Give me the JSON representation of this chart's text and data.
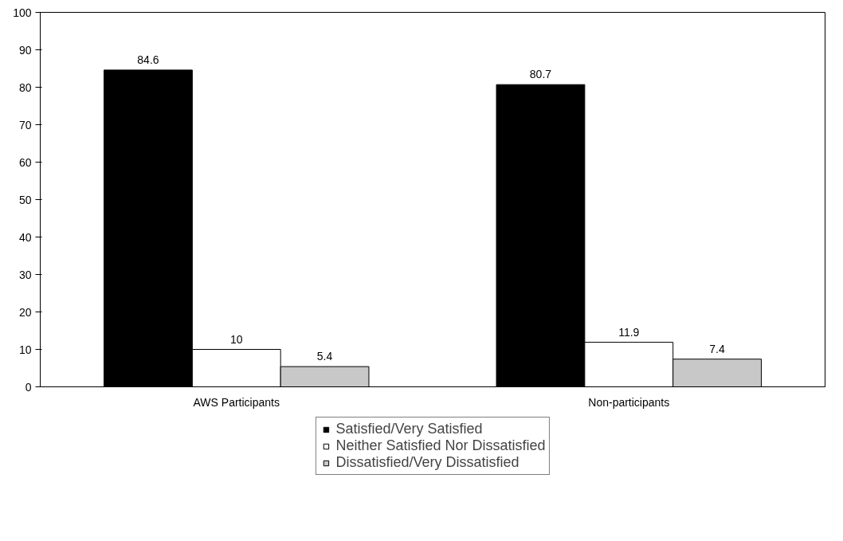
{
  "chart_data": {
    "type": "bar",
    "categories": [
      "AWS Participants",
      "Non-participants"
    ],
    "series": [
      {
        "name": "Satisfied/Very Satisfied",
        "color": "#000000",
        "values": [
          84.6,
          80.7
        ]
      },
      {
        "name": "Neither Satisfied Nor Dissatisfied",
        "color": "#ffffff",
        "values": [
          10,
          11.9
        ]
      },
      {
        "name": "Dissatisfied/Very Dissatisfied",
        "color": "#c8c8c8",
        "values": [
          5.4,
          7.4
        ]
      }
    ],
    "ylim": [
      0,
      100
    ],
    "yticks": [
      0,
      10,
      20,
      30,
      40,
      50,
      60,
      70,
      80,
      90,
      100
    ],
    "grid": false,
    "legend": "bottom",
    "data_labels": true
  }
}
